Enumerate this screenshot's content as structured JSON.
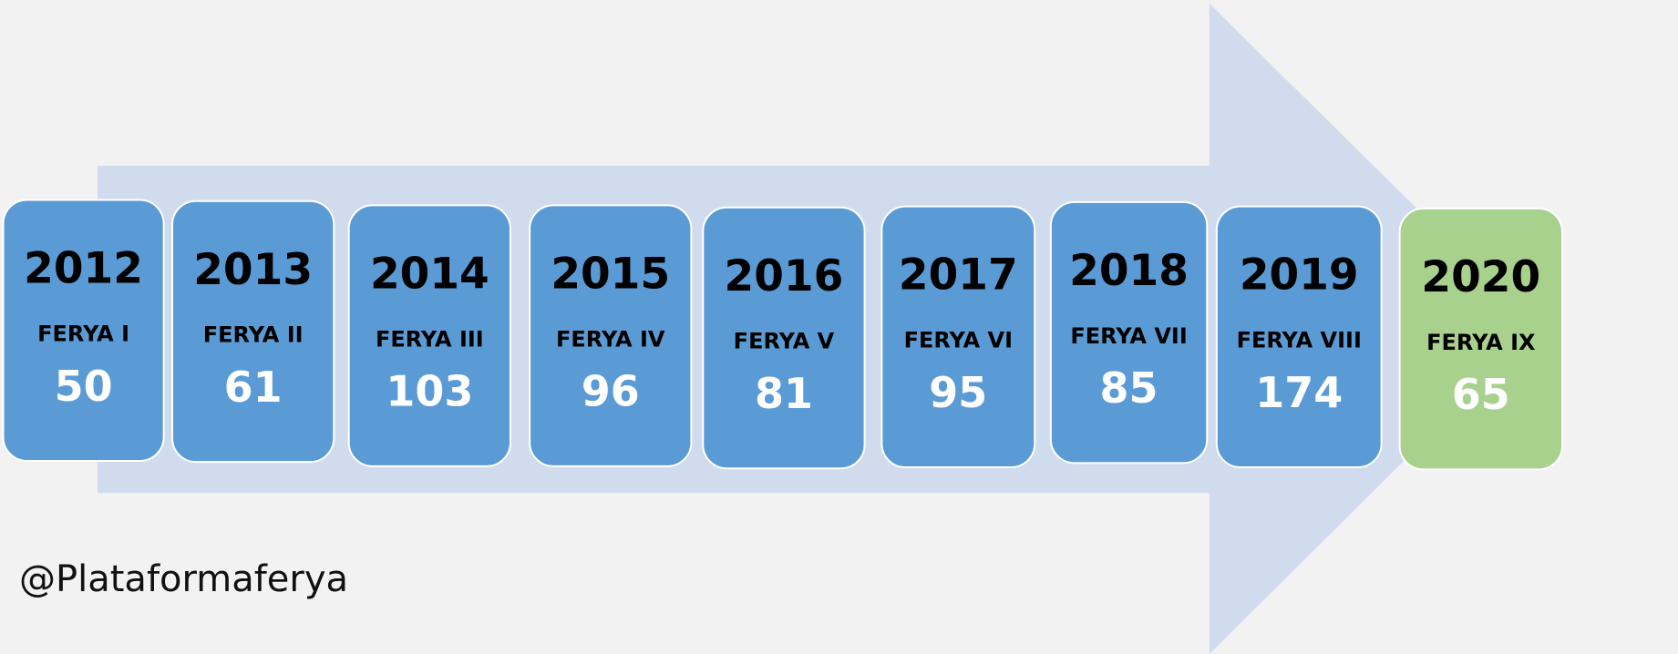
{
  "items": [
    {
      "year": "2012",
      "label": "FERYA I",
      "value": "50",
      "color": "#5b9bd5"
    },
    {
      "year": "2013",
      "label": "FERYA II",
      "value": "61",
      "color": "#5b9bd5"
    },
    {
      "year": "2014",
      "label": "FERYA III",
      "value": "103",
      "color": "#5b9bd5"
    },
    {
      "year": "2015",
      "label": "FERYA IV",
      "value": "96",
      "color": "#5b9bd5"
    },
    {
      "year": "2016",
      "label": "FERYA V",
      "value": "81",
      "color": "#5b9bd5"
    },
    {
      "year": "2017",
      "label": "FERYA VI",
      "value": "95",
      "color": "#5b9bd5"
    },
    {
      "year": "2018",
      "label": "FERYA VII",
      "value": "85",
      "color": "#5b9bd5"
    },
    {
      "year": "2019",
      "label": "FERYA VIII",
      "value": "174",
      "color": "#5b9bd5"
    },
    {
      "year": "2020",
      "label": "FERYA IX",
      "value": "65",
      "color": "#a9d18e"
    }
  ],
  "handle": "@Plataformaferya"
}
